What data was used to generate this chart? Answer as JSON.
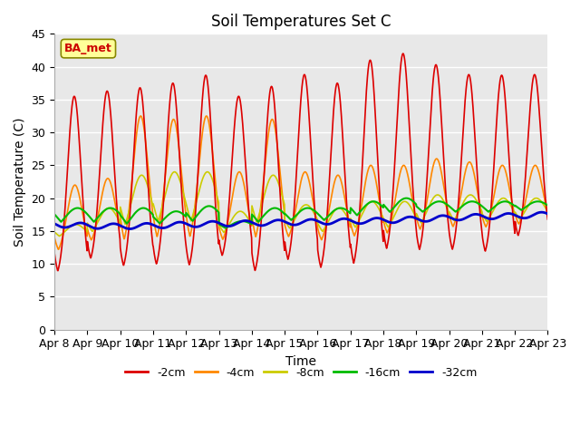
{
  "title": "Soil Temperatures Set C",
  "xlabel": "Time",
  "ylabel": "Soil Temperature (C)",
  "ylim": [
    0,
    45
  ],
  "n_days": 15,
  "xtick_labels": [
    "Apr 8",
    "Apr 9",
    "Apr 10",
    "Apr 11",
    "Apr 12",
    "Apr 13",
    "Apr 14",
    "Apr 15",
    "Apr 16",
    "Apr 17",
    "Apr 18",
    "Apr 19",
    "Apr 20",
    "Apr 21",
    "Apr 22",
    "Apr 23"
  ],
  "legend_entries": [
    "-2cm",
    "-4cm",
    "-8cm",
    "-16cm",
    "-32cm"
  ],
  "line_colors": [
    "#dd0000",
    "#ff8800",
    "#cccc00",
    "#00bb00",
    "#0000cc"
  ],
  "line_widths": [
    1.2,
    1.2,
    1.2,
    1.5,
    2.0
  ],
  "bg_color": "#e8e8e8",
  "annotation_text": "BA_met",
  "annotation_color": "#cc0000",
  "annotation_bg": "#ffff99",
  "title_fontsize": 12,
  "label_fontsize": 10,
  "tick_fontsize": 9,
  "day_peaks_2cm": [
    35.5,
    36.3,
    36.8,
    37.5,
    38.7,
    35.5,
    37.0,
    38.8,
    37.5,
    41.0,
    42.0,
    40.3,
    38.8,
    38.7,
    38.8
  ],
  "day_mins_2cm": [
    7.5,
    9.5,
    8.3,
    8.5,
    8.3,
    10.0,
    7.5,
    9.2,
    8.0,
    8.5,
    10.8,
    10.7,
    10.8,
    10.5,
    13.0
  ],
  "day_peaks_4cm": [
    22.0,
    23.0,
    32.5,
    32.0,
    32.5,
    24.0,
    32.0,
    24.0,
    23.5,
    25.0,
    25.0,
    26.0,
    25.5,
    25.0,
    25.0
  ],
  "day_mins_4cm": [
    11.0,
    12.5,
    11.5,
    12.0,
    12.0,
    12.5,
    12.0,
    13.0,
    12.5,
    13.0,
    13.5,
    14.0,
    14.5,
    14.5,
    15.0
  ],
  "day_peaks_8cm": [
    16.0,
    18.5,
    23.5,
    24.0,
    24.0,
    18.0,
    23.5,
    19.0,
    18.5,
    19.5,
    19.5,
    20.5,
    20.5,
    20.0,
    20.0
  ],
  "day_mins_8cm": [
    13.5,
    13.5,
    13.0,
    13.5,
    13.5,
    13.5,
    13.5,
    14.0,
    13.5,
    14.0,
    14.0,
    14.5,
    15.0,
    15.0,
    15.5
  ],
  "day_peaks_16cm": [
    18.5,
    18.5,
    18.5,
    18.0,
    18.8,
    16.5,
    18.5,
    18.5,
    18.5,
    19.5,
    20.0,
    19.5,
    19.5,
    19.5,
    19.5
  ],
  "day_mins_16cm": [
    14.5,
    14.5,
    14.0,
    14.5,
    14.5,
    14.5,
    14.5,
    15.0,
    15.0,
    15.5,
    16.0,
    16.5,
    16.5,
    16.5,
    17.0
  ],
  "base_32cm": [
    16.0,
    15.8,
    15.7,
    15.8,
    16.0,
    16.1,
    16.2,
    16.3,
    16.4,
    16.5,
    16.6,
    16.8,
    17.0,
    17.2,
    17.3,
    17.5
  ]
}
